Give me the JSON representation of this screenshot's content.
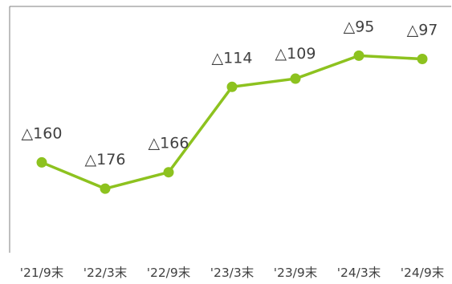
{
  "chart_data": {
    "type": "line",
    "categories": [
      "'21/9末",
      "'22/3末",
      "'22/9末",
      "'23/3末",
      "'23/9末",
      "'24/3末",
      "'24/9末"
    ],
    "values": [
      -160,
      -176,
      -166,
      -114,
      -109,
      -95,
      -97
    ],
    "data_labels": [
      "△160",
      "△176",
      "△166",
      "△114",
      "△109",
      "△95",
      "△97"
    ],
    "ylim": [
      -215,
      -65
    ],
    "grid": false,
    "colors": {
      "line": "#8DC21F",
      "frame": "#7F7F7F",
      "text": "#404040"
    }
  }
}
